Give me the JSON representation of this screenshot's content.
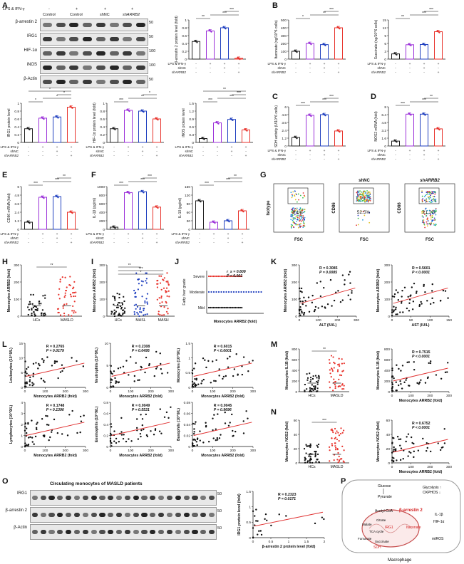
{
  "panels": {
    "A": {
      "letter": "A",
      "blot": {
        "header_label": "LPS & IFN-γ",
        "lanes": [
          "-",
          "+",
          "+",
          "+"
        ],
        "groups": [
          "Control",
          "Control",
          "shNC",
          "shARRB2"
        ],
        "proteins": [
          "β-arrestin 2",
          "IRG1",
          "HIF-1α",
          "iNOS",
          "β-Actin"
        ],
        "kda": [
          "50",
          "50",
          "100",
          "100",
          "50"
        ]
      },
      "bar_main_ylabel": "β-arrestin 2\nprotein level (fold)",
      "small_ylabels": [
        "IRG1\nprotein level",
        "HIF-1α\nprotein level (fold)",
        "iNOS\nprotein level"
      ]
    },
    "B": {
      "letter": "B",
      "ylabels": [
        "Itaconate\n(ng/10^6 cells)",
        "Succinate\n(ng/10^6 cells)"
      ]
    },
    "C": {
      "letter": "C",
      "ylabel": "SDH activity\n(U/10^6 cells)"
    },
    "D": {
      "letter": "D",
      "ylabel": "NOS2 mRNA (fold)"
    },
    "E": {
      "letter": "E",
      "ylabel": "CD86 mRNA (fold)"
    },
    "F": {
      "letter": "F",
      "ylabels": [
        "IL-1β (pg/ml)",
        "IL-10 (pg/ml)"
      ]
    },
    "G": {
      "letter": "G",
      "titles": [
        "",
        "shNC",
        "shARRB2"
      ],
      "ylabels": [
        "Isotype",
        "CD86",
        "CD86"
      ],
      "xlabel": "FSC",
      "percents": [
        "0.1%",
        "52.5%",
        "21.2%"
      ]
    },
    "H": {
      "letter": "H",
      "ylabel": "Monocytes ARRB2 (fold)",
      "groups": [
        "HCs",
        "MASLD"
      ],
      "sig": "**"
    },
    "I": {
      "letter": "I",
      "ylabel": "Monocytes ARRB2 (fold)",
      "groups": [
        "HCs",
        "MASL",
        "MASH"
      ],
      "sig": [
        "**",
        "***",
        "*"
      ]
    },
    "J": {
      "letter": "J",
      "ylabel": "Fatty liver grade",
      "xlabel": "Monocytes ARRB2 (fold)",
      "grades": [
        "Severe",
        "Moderate",
        "Mild"
      ],
      "rs": "r_s = 0.609",
      "p": "P < 0.001"
    },
    "K": {
      "letter": "K"
    },
    "L": {
      "letter": "L"
    },
    "M": {
      "letter": "M"
    },
    "N": {
      "letter": "N"
    },
    "O": {
      "letter": "O",
      "title": "Circulating monocytes of MASLD patients",
      "proteins": [
        "IRG1",
        "β-arrestin 2",
        "β-Actin"
      ],
      "kda": [
        "50",
        "50",
        "50"
      ],
      "scatter": {
        "R": "R = 0.2323",
        "P": "P = 0.0171",
        "xlabel": "β-arrestin 2 protein level (fold)",
        "ylabel": "IRG1 protein level (fold)"
      }
    },
    "P": {
      "letter": "P",
      "caption": "Macrophage",
      "labels": [
        "Glucose",
        "Pyruvate",
        "Glycolysis ↑",
        "OXPHOS ↓",
        "Acetyl-CoA",
        "β-arrestin 2",
        "IRG1",
        "Itaconate",
        "Malate",
        "Citrate",
        "TCA cycle",
        "Fumarate",
        "Succinate",
        "SDH",
        "IL-1β",
        "HIF-1α",
        "mtROS"
      ]
    }
  },
  "common": {
    "treat_rows": [
      "LPS & IFN-γ",
      "shNC",
      "shARRB2"
    ],
    "treat_signs": [
      [
        "-",
        "+",
        "+",
        "+"
      ],
      [
        "-",
        "-",
        "+",
        "-"
      ],
      [
        "-",
        "-",
        "-",
        "+"
      ]
    ],
    "colors": {
      "control": "#222222",
      "purple": "#9b30d9",
      "blue": "#1f3fbf",
      "red": "#e8322b",
      "red_line": "#e03030"
    }
  },
  "chart_data": [
    {
      "type": "bar",
      "panel": "A-main",
      "categories": [
        "Control",
        "LPS&IFN-γ",
        "shNC",
        "shARRB2"
      ],
      "values": [
        0.45,
        0.72,
        0.8,
        0.02
      ],
      "ylim": [
        0,
        1.0
      ],
      "ylabel": "β-arrestin 2 protein level (fold)",
      "sig": [
        "**",
        "***",
        "***"
      ]
    },
    {
      "type": "bar",
      "panel": "A-IRG1",
      "categories": [
        "Control",
        "LPS&IFN-γ",
        "shNC",
        "shARRB2"
      ],
      "values": [
        0.35,
        0.62,
        0.65,
        0.9
      ],
      "ylim": [
        0,
        1.0
      ],
      "ylabel": "IRG1 protein level",
      "sig": [
        "*",
        "*",
        "*",
        "*"
      ]
    },
    {
      "type": "bar",
      "panel": "A-HIF",
      "categories": [
        "Control",
        "LPS&IFN-γ",
        "shNC",
        "shARRB2"
      ],
      "values": [
        0.35,
        0.82,
        0.8,
        0.6
      ],
      "ylim": [
        0,
        1.0
      ],
      "ylabel": "HIF-1α protein level (fold)",
      "sig": [
        "***",
        "**",
        "*"
      ]
    },
    {
      "type": "bar",
      "panel": "A-iNOS",
      "categories": [
        "Control",
        "LPS&IFN-γ",
        "shNC",
        "shARRB2"
      ],
      "values": [
        0.15,
        0.75,
        0.88,
        0.48
      ],
      "ylim": [
        0,
        1.5
      ],
      "ylabel": "iNOS protein level",
      "sig": [
        "***",
        "***",
        "***",
        "**"
      ]
    },
    {
      "type": "bar",
      "panel": "B-itaconate",
      "categories": [
        "Control",
        "LPS&IFN-γ",
        "shNC",
        "shARRB2"
      ],
      "values": [
        100,
        200,
        185,
        400
      ],
      "ylim": [
        0,
        500
      ],
      "ylabel": "Itaconate (ng/10^6 cells)",
      "sig": [
        "*",
        "**",
        "***"
      ]
    },
    {
      "type": "bar",
      "panel": "B-succinate",
      "categories": [
        "Control",
        "LPS&IFN-γ",
        "shNC",
        "shARRB2"
      ],
      "values": [
        2,
        5.5,
        5.6,
        10.5
      ],
      "ylim": [
        0,
        15
      ],
      "ylabel": "Succinate (ng/10^6 cells)",
      "sig": [
        "**",
        "***",
        "***"
      ]
    },
    {
      "type": "bar",
      "panel": "C",
      "categories": [
        "Control",
        "LPS&IFN-γ",
        "shNC",
        "shARRB2"
      ],
      "values": [
        1.3,
        4.7,
        4.8,
        2.3
      ],
      "ylim": [
        0,
        6
      ],
      "ylabel": "SDH activity (U/10^6 cells)",
      "sig": [
        "***",
        "***",
        "***"
      ]
    },
    {
      "type": "bar",
      "panel": "D",
      "categories": [
        "Control",
        "LPS&IFN-γ",
        "shNC",
        "shARRB2"
      ],
      "values": [
        1,
        6.5,
        6.5,
        3.5
      ],
      "ylim": [
        0,
        8
      ],
      "ylabel": "NOS2 mRNA (fold)",
      "sig": [
        "***",
        "***",
        "**"
      ]
    },
    {
      "type": "bar",
      "panel": "E",
      "categories": [
        "Control",
        "LPS&IFN-γ",
        "shNC",
        "shARRB2"
      ],
      "values": [
        1,
        4.5,
        4.6,
        2.4
      ],
      "ylim": [
        0,
        6
      ],
      "ylabel": "CD86 mRNA (fold)",
      "sig": [
        "***",
        "***",
        "**"
      ]
    },
    {
      "type": "bar",
      "panel": "F-IL1b",
      "categories": [
        "Control",
        "LPS&IFN-γ",
        "shNC",
        "shARRB2"
      ],
      "values": [
        50,
        860,
        880,
        520
      ],
      "ylim": [
        0,
        1000
      ],
      "ylabel": "IL-1β (pg/ml)",
      "sig": [
        "***",
        "***",
        "***"
      ]
    },
    {
      "type": "bar",
      "panel": "F-IL10",
      "categories": [
        "Control",
        "LPS&IFN-γ",
        "shNC",
        "shARRB2"
      ],
      "values": [
        100,
        25,
        30,
        65
      ],
      "ylim": [
        0,
        150
      ],
      "ylabel": "IL-10 (pg/ml)",
      "sig": [
        "***",
        "***",
        "**"
      ]
    },
    {
      "type": "scatter",
      "panel": "K-ALT",
      "xlabel": "ALT (IU/L)",
      "ylabel": "Monocytes ARRB2 (fold)",
      "R": "R = 0.3085",
      "P": "P = 0.0085",
      "xlim": [
        0,
        300
      ],
      "ylim": [
        0,
        300
      ],
      "xticks": [
        0,
        100,
        200,
        300
      ],
      "yticks": [
        0,
        100,
        200,
        300
      ]
    },
    {
      "type": "scatter",
      "panel": "K-AST",
      "xlabel": "AST (IU/L)",
      "ylabel": "Monocytes ARRB2 (fold)",
      "R": "R = 0.5601",
      "P": "P < 0.0001",
      "xlim": [
        0,
        150
      ],
      "ylim": [
        0,
        300
      ],
      "xticks": [
        0,
        50,
        100,
        150
      ],
      "yticks": [
        0,
        100,
        200,
        300
      ]
    },
    {
      "type": "scatter",
      "panel": "L-Leukocytes",
      "xlabel": "Monocytes ARRB2 (fold)",
      "ylabel": "Leukocytes (10^9/L)",
      "R": "R = 0.2765",
      "P": "P = 0.0179",
      "xlim": [
        0,
        300
      ],
      "ylim": [
        0,
        15
      ],
      "xticks": [
        0,
        100,
        200,
        300
      ],
      "yticks": [
        0,
        5,
        10,
        15
      ]
    },
    {
      "type": "scatter",
      "panel": "L-Neutrophils",
      "xlabel": "Monocytes ARRB2 (fold)",
      "ylabel": "Neutrophils (10^9/L)",
      "R": "R = 0.2308",
      "P": "P = 0.0495",
      "xlim": [
        0,
        300
      ],
      "ylim": [
        0,
        10
      ],
      "xticks": [
        0,
        100,
        200,
        300
      ],
      "yticks": [
        0,
        5,
        10
      ]
    },
    {
      "type": "scatter",
      "panel": "L-Monocytes",
      "xlabel": "Monocytes ARRB2 (fold)",
      "ylabel": "Monocytes (10^9/L)",
      "R": "R = 0.6015",
      "P": "P < 0.0001",
      "xlim": [
        0,
        300
      ],
      "ylim": [
        0,
        1.5
      ],
      "xticks": [
        0,
        100,
        200,
        300
      ],
      "yticks": [
        0,
        0.5,
        1.0,
        1.5
      ]
    },
    {
      "type": "scatter",
      "panel": "L-Lymphocytes",
      "xlabel": "Monocytes ARRB2 (fold)",
      "ylabel": "Lymphocytes (10^9/L)",
      "R": "R = 0.1748",
      "P": "P = 0.1390",
      "xlim": [
        0,
        300
      ],
      "ylim": [
        0,
        4
      ],
      "xticks": [
        0,
        100,
        200,
        300
      ],
      "yticks": [
        0,
        1,
        2,
        3,
        4
      ]
    },
    {
      "type": "scatter",
      "panel": "L-Eosinophils",
      "xlabel": "Monocytes ARRB2 (fold)",
      "ylabel": "Eosinophils (10^9/L)",
      "R": "R = 0.0049",
      "P": "P = 0.5531",
      "xlim": [
        0,
        300
      ],
      "ylim": [
        0,
        0.8
      ],
      "xticks": [
        0,
        100,
        200,
        300
      ],
      "yticks": [
        0,
        0.2,
        0.4,
        0.6,
        0.8
      ]
    },
    {
      "type": "scatter",
      "panel": "L-Basophils",
      "xlabel": "Monocytes ARRB2 (fold)",
      "ylabel": "Basophils (10^9/L)",
      "R": "R = 0.0045",
      "P": "P = 0.9696",
      "xlim": [
        0,
        300
      ],
      "ylim": [
        0,
        0.08
      ],
      "xticks": [
        0,
        100,
        200,
        300
      ],
      "yticks": [
        0,
        0.02,
        0.04,
        0.06,
        0.08
      ]
    },
    {
      "type": "scatter",
      "panel": "M-IL1B",
      "xlabel": "Monocytes ARRB2 (fold)",
      "ylabel": "Monocytes IL1B (fold)",
      "R": "R = 0.7515",
      "P": "P < 0.0001",
      "xlim": [
        0,
        300
      ],
      "ylim": [
        0,
        800
      ],
      "xticks": [
        0,
        100,
        200,
        300
      ],
      "yticks": [
        0,
        200,
        400,
        600,
        800
      ]
    },
    {
      "type": "scatter",
      "panel": "N-NOS2",
      "xlabel": "Monocytes ARRB2 (fold)",
      "ylabel": "Monocytes NOS2 (fold)",
      "R": "R = 0.6752",
      "P": "P < 0.0001",
      "xlim": [
        0,
        300
      ],
      "ylim": [
        0,
        60
      ],
      "xticks": [
        0,
        100,
        200,
        300
      ],
      "yticks": [
        0,
        20,
        40,
        60
      ]
    },
    {
      "type": "scatter",
      "panel": "O",
      "xlabel": "β-arrestin 2 protein level (fold)",
      "ylabel": "IRG1 protein level (fold)",
      "R": "R = 0.2323",
      "P": "P = 0.0171",
      "xlim": [
        0,
        2.0
      ],
      "ylim": [
        0,
        1.5
      ],
      "xticks": [
        0,
        0.5,
        1.0,
        1.5,
        2.0
      ],
      "yticks": [
        0,
        0.5,
        1.0,
        1.5
      ]
    }
  ]
}
